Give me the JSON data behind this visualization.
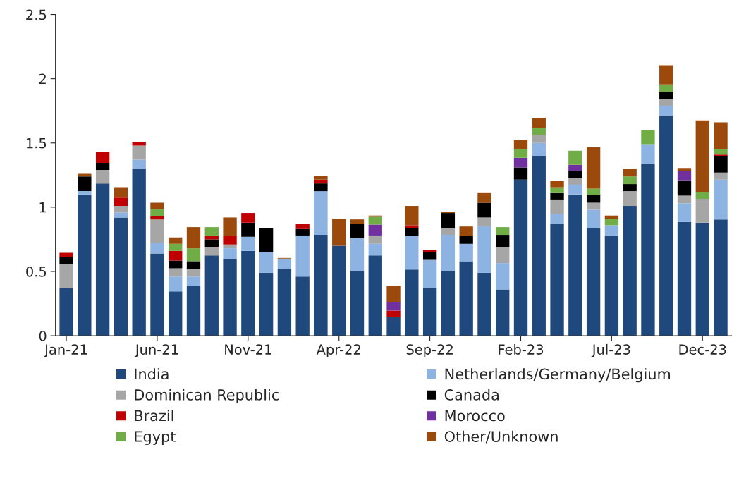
{
  "chart_data": {
    "type": "bar",
    "stacked": true,
    "categories": [
      "Jan-21",
      null,
      null,
      null,
      null,
      "Jun-21",
      null,
      null,
      null,
      null,
      "Nov-21",
      null,
      null,
      null,
      null,
      "Apr-22",
      null,
      null,
      null,
      null,
      "Sep-22",
      null,
      null,
      null,
      null,
      "Feb-23",
      null,
      null,
      null,
      null,
      "Jul-23",
      null,
      null,
      null,
      null,
      "Dec-23",
      null
    ],
    "series": [
      {
        "name": "India",
        "color": "#1f497d",
        "values": [
          0.37,
          1.1,
          1.185,
          0.92,
          1.3,
          0.64,
          0.345,
          0.39,
          0.625,
          0.595,
          0.66,
          0.49,
          0.52,
          0.46,
          0.785,
          0.7,
          0.505,
          0.625,
          0.145,
          0.515,
          0.37,
          0.505,
          0.58,
          0.49,
          0.36,
          1.215,
          1.4,
          0.87,
          1.1,
          0.835,
          0.78,
          1.01,
          1.335,
          1.71,
          0.885,
          0.88,
          0.905
        ]
      },
      {
        "name": "Netherlands/Germany/Belgium",
        "color": "#8db3e2",
        "values": [
          0,
          0.025,
          0,
          0.04,
          0.07,
          0.085,
          0.115,
          0.07,
          0,
          0.085,
          0.11,
          0.16,
          0.08,
          0.32,
          0.34,
          0,
          0.255,
          0.09,
          0,
          0.26,
          0.22,
          0.28,
          0.135,
          0.365,
          0.205,
          0,
          0.1,
          0.075,
          0.075,
          0.145,
          0.08,
          0,
          0.155,
          0.08,
          0.145,
          0,
          0.31
        ]
      },
      {
        "name": "Dominican Republic",
        "color": "#a6a6a6",
        "values": [
          0.19,
          0,
          0.105,
          0.05,
          0.11,
          0.18,
          0.065,
          0.06,
          0.065,
          0.03,
          0,
          0,
          0,
          0,
          0,
          0,
          0,
          0.065,
          0,
          0,
          0,
          0.055,
          0,
          0.065,
          0.125,
          0,
          0.06,
          0.115,
          0.055,
          0.055,
          0,
          0.115,
          0,
          0.055,
          0.06,
          0.185,
          0.055
        ]
      },
      {
        "name": "Canada",
        "color": "#000000",
        "values": [
          0.05,
          0.115,
          0.055,
          0,
          0,
          0,
          0.06,
          0.06,
          0.06,
          0,
          0.11,
          0.185,
          0,
          0.05,
          0.06,
          0,
          0.11,
          0,
          0,
          0.065,
          0.06,
          0.115,
          0.06,
          0.115,
          0.095,
          0.095,
          0,
          0.05,
          0.055,
          0.06,
          0,
          0.055,
          0,
          0.055,
          0.12,
          0,
          0.13
        ]
      },
      {
        "name": "Brazil",
        "color": "#c00000",
        "values": [
          0.035,
          0,
          0.085,
          0.065,
          0.03,
          0.025,
          0.075,
          0,
          0.03,
          0.065,
          0.075,
          0,
          0,
          0.04,
          0.03,
          0,
          0,
          0,
          0.05,
          0.02,
          0.02,
          0,
          0,
          0,
          0,
          0,
          0,
          0,
          0,
          0,
          0,
          0,
          0,
          0,
          0,
          0,
          0.01
        ]
      },
      {
        "name": "Morocco",
        "color": "#7030a0",
        "values": [
          0,
          0,
          0,
          0,
          0,
          0,
          0,
          0,
          0,
          0,
          0,
          0,
          0,
          0,
          0,
          0,
          0,
          0.085,
          0.065,
          0,
          0,
          0,
          0,
          0,
          0,
          0.075,
          0,
          0,
          0.045,
          0,
          0,
          0,
          0,
          0,
          0.075,
          0,
          0
        ]
      },
      {
        "name": "Egypt",
        "color": "#70ad47",
        "values": [
          0,
          0,
          0,
          0,
          0,
          0.055,
          0.055,
          0.1,
          0.065,
          0,
          0,
          0,
          0,
          0,
          0,
          0,
          0,
          0.06,
          0,
          0,
          0,
          0,
          0,
          0,
          0.06,
          0.065,
          0.06,
          0.045,
          0.11,
          0.05,
          0.05,
          0.06,
          0.11,
          0.055,
          0,
          0.05,
          0.045
        ]
      },
      {
        "name": "Other/Unknown",
        "color": "#9c4a0c",
        "values": [
          0,
          0.02,
          0,
          0.08,
          0,
          0.05,
          0.05,
          0.165,
          0,
          0.145,
          0,
          0,
          0.005,
          0,
          0.03,
          0.21,
          0.035,
          0.01,
          0.13,
          0.15,
          0,
          0.01,
          0.075,
          0.075,
          0,
          0.07,
          0.075,
          0.05,
          0,
          0.325,
          0.025,
          0.06,
          0,
          0.15,
          0.02,
          0.56,
          0.205
        ]
      }
    ],
    "ylim": [
      0,
      2.5
    ],
    "yticks": [
      0,
      0.5,
      1,
      1.5,
      2,
      2.5
    ],
    "grid": false,
    "legend": "bottom"
  }
}
